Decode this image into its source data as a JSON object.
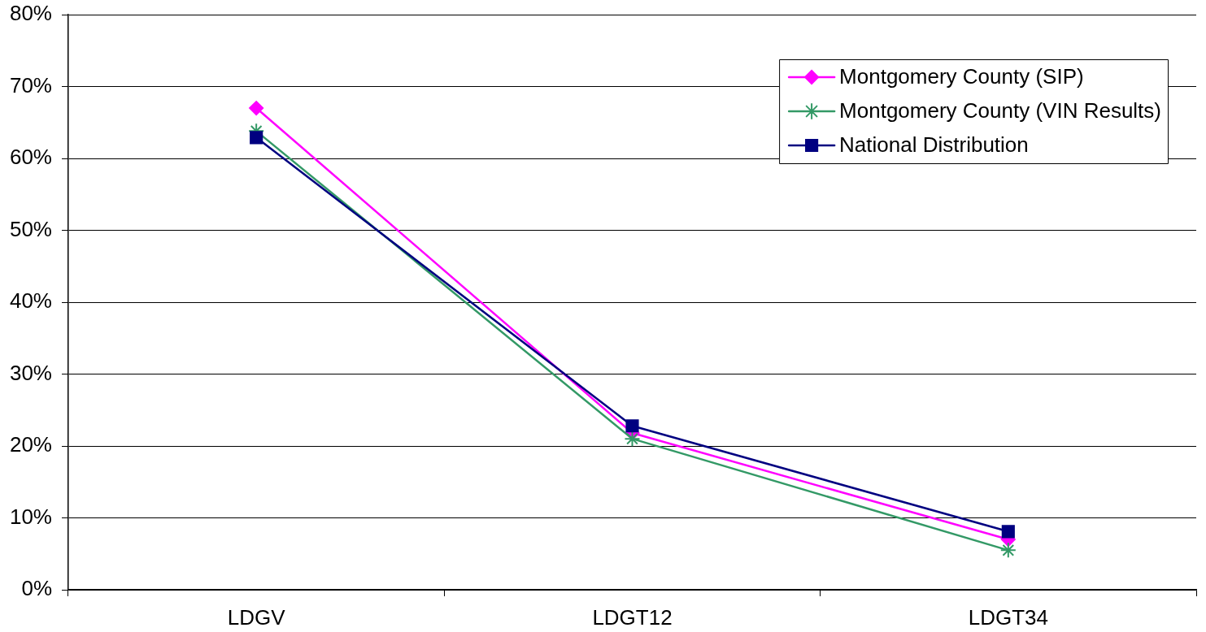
{
  "chart_data": {
    "type": "line",
    "categories": [
      "LDGV",
      "LDGT12",
      "LDGT34"
    ],
    "series": [
      {
        "name": "Montgomery County (SIP)",
        "color": "#ff00ff",
        "marker": "diamond",
        "values": [
          67.0,
          21.8,
          7.0
        ]
      },
      {
        "name": "Montgomery County (VIN Results)",
        "color": "#339966",
        "marker": "cross",
        "values": [
          63.8,
          21.0,
          5.5
        ]
      },
      {
        "name": "National Distribution",
        "color": "#000080",
        "marker": "square",
        "values": [
          62.9,
          22.8,
          8.1
        ]
      }
    ],
    "ylim": [
      0,
      80
    ],
    "yticks": [
      {
        "value": 0,
        "label": "0%"
      },
      {
        "value": 10,
        "label": "10%"
      },
      {
        "value": 20,
        "label": "20%"
      },
      {
        "value": 30,
        "label": "30%"
      },
      {
        "value": 40,
        "label": "40%"
      },
      {
        "value": 50,
        "label": "50%"
      },
      {
        "value": 60,
        "label": "60%"
      },
      {
        "value": 70,
        "label": "70%"
      },
      {
        "value": 80,
        "label": "80%"
      }
    ],
    "grid": "y",
    "legend": "top right"
  }
}
